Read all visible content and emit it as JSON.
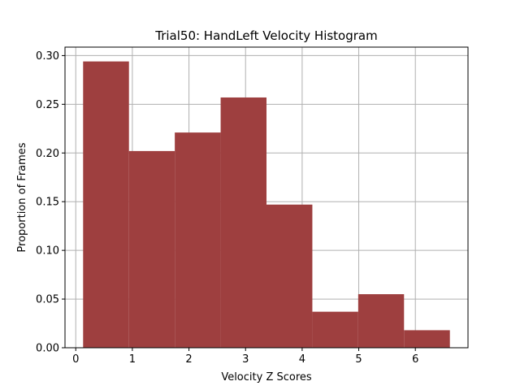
{
  "chart_data": {
    "type": "bar",
    "title": "Trial50: HandLeft Velocity Histogram",
    "xlabel": "Velocity Z Scores",
    "ylabel": "Proportion of Frames",
    "bins": [
      {
        "x0": 0.13,
        "x1": 0.94,
        "value": 0.294
      },
      {
        "x0": 0.94,
        "x1": 1.75,
        "value": 0.202
      },
      {
        "x0": 1.75,
        "x1": 2.56,
        "value": 0.221
      },
      {
        "x0": 2.56,
        "x1": 3.37,
        "value": 0.257
      },
      {
        "x0": 3.37,
        "x1": 4.18,
        "value": 0.147
      },
      {
        "x0": 4.18,
        "x1": 4.99,
        "value": 0.037
      },
      {
        "x0": 4.99,
        "x1": 5.8,
        "value": 0.055
      },
      {
        "x0": 5.8,
        "x1": 6.61,
        "value": 0.018
      }
    ],
    "xlim": [
      -0.19,
      6.93
    ],
    "ylim": [
      0,
      0.3087
    ],
    "xticks": [
      0,
      1,
      2,
      3,
      4,
      5,
      6
    ],
    "xtick_labels": [
      "0",
      "1",
      "2",
      "3",
      "4",
      "5",
      "6"
    ],
    "yticks": [
      0.0,
      0.05,
      0.1,
      0.15,
      0.2,
      0.25,
      0.3
    ],
    "ytick_labels": [
      "0.00",
      "0.05",
      "0.10",
      "0.15",
      "0.20",
      "0.25",
      "0.30"
    ],
    "grid": true,
    "bar_color": "#9e3f3f"
  }
}
